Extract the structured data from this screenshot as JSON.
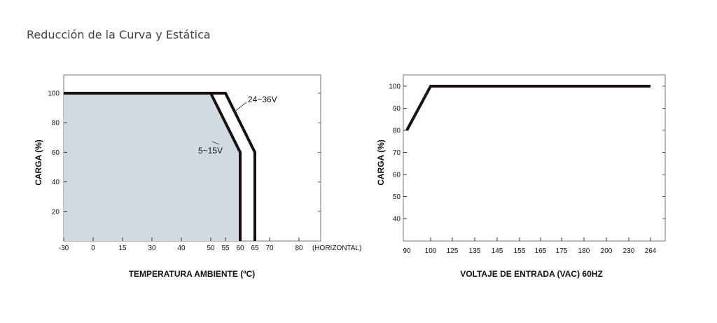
{
  "page": {
    "title": "Reducción de la Curva y Estática"
  },
  "chart_data": [
    {
      "type": "line",
      "xlabel": "TEMPERATURA AMBIENTE (ºC)",
      "ylabel": "CARGA (%)",
      "x_ticks": [
        "-30",
        "0",
        "15",
        "30",
        "40",
        "50",
        "55",
        "60",
        "65",
        "70",
        "80"
      ],
      "x_tick_values": [
        -30,
        0,
        15,
        30,
        40,
        50,
        55,
        60,
        65,
        70,
        80
      ],
      "x_suffix": "(HORIZONTAL)",
      "y_ticks": [
        "20",
        "40",
        "60",
        "80",
        "100"
      ],
      "y_tick_values": [
        20,
        40,
        60,
        80,
        100
      ],
      "series": [
        {
          "name": "5~15V",
          "x": [
            -30,
            50,
            60,
            60
          ],
          "y": [
            100,
            100,
            60,
            0
          ],
          "filled": true
        },
        {
          "name": "24~36V",
          "x": [
            -30,
            55,
            65,
            65
          ],
          "y": [
            100,
            100,
            60,
            0
          ],
          "filled": false
        }
      ],
      "annotations": [
        "24~36V",
        "5~15V"
      ],
      "fill_color": "#d1dae3",
      "line_color": "#1a0f0f"
    },
    {
      "type": "line",
      "xlabel": "VOLTAJE DE ENTRADA (VAC) 60HZ",
      "ylabel": "CARGA (%)",
      "x_ticks": [
        "90",
        "100",
        "125",
        "135",
        "145",
        "155",
        "165",
        "175",
        "180",
        "200",
        "230",
        "264"
      ],
      "y_ticks": [
        "40",
        "50",
        "60",
        "70",
        "80",
        "90",
        "100"
      ],
      "y_tick_values": [
        40,
        50,
        60,
        70,
        80,
        90,
        100
      ],
      "series": [
        {
          "x": [
            90,
            100,
            264
          ],
          "y": [
            80,
            100,
            100
          ]
        }
      ],
      "line_color": "#1a0f0f"
    }
  ]
}
